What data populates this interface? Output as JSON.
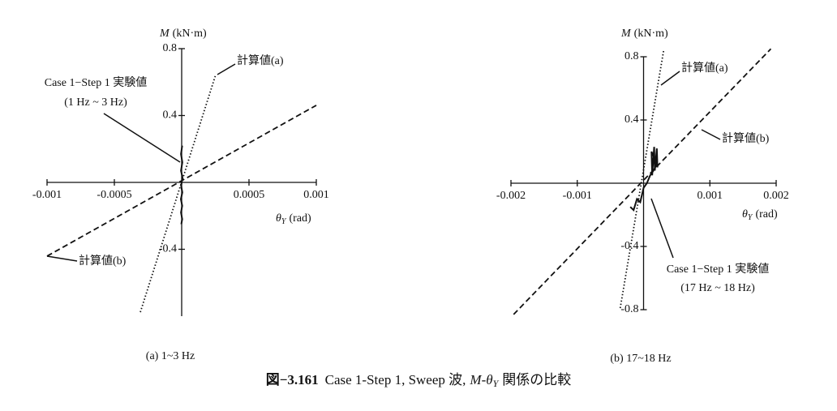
{
  "chart_data": [
    {
      "type": "line",
      "panel_label": "(a) 1~3 Hz",
      "ylabel": {
        "symbol": "M",
        "unit": "(kN·m)"
      },
      "xlabel": {
        "symbol": "θ",
        "sub": "Y",
        "unit": "(rad)"
      },
      "xlim": [
        -0.001,
        0.001
      ],
      "ylim": [
        -0.8,
        0.8
      ],
      "xticks": [
        -0.001,
        -0.0005,
        0.0005,
        0.001
      ],
      "yticks": [
        -0.4,
        0.4,
        0.8
      ],
      "series": [
        {
          "name": "計算値(a)",
          "style": "dotted",
          "color": "#111",
          "x": [
            -0.000307,
            0.000253
          ],
          "values": [
            -0.776,
            0.645
          ]
        },
        {
          "name": "計算値(b)",
          "style": "dashed",
          "color": "#111",
          "x": [
            -0.001,
            0.001
          ],
          "values": [
            -0.441,
            0.461
          ]
        },
        {
          "name": "Case 1−Step 1 実験値",
          "note": "(1 Hz ~ 3 Hz)",
          "style": "solid",
          "color": "#111",
          "x": [
            4e-06,
            -5e-06,
            5e-06,
            -5e-06,
            6e-06,
            -4e-06,
            5e-06,
            -6e-06,
            4e-06,
            -5e-06,
            4e-06,
            -3e-06
          ],
          "values": [
            0.22,
            0.17,
            0.12,
            0.07,
            0.03,
            -0.02,
            -0.06,
            -0.1,
            -0.14,
            -0.18,
            -0.22,
            -0.25
          ]
        }
      ]
    },
    {
      "type": "line",
      "panel_label": "(b) 17~18 Hz",
      "ylabel": {
        "symbol": "M",
        "unit": "(kN·m)"
      },
      "xlabel": {
        "symbol": "θ",
        "sub": "Y",
        "unit": "(rad)"
      },
      "xlim": [
        -0.002,
        0.002
      ],
      "ylim": [
        -0.8,
        0.8
      ],
      "xticks": [
        -0.002,
        -0.001,
        0.001,
        0.002
      ],
      "yticks": [
        -0.8,
        -0.4,
        0.4,
        0.8
      ],
      "series": [
        {
          "name": "計算値(a)",
          "style": "dotted",
          "color": "#111",
          "x": [
            -0.000352,
            0.000303
          ],
          "values": [
            -0.79,
            0.84
          ]
        },
        {
          "name": "計算値(b)",
          "style": "dashed",
          "color": "#111",
          "x": [
            -0.00196,
            0.00192
          ],
          "values": [
            -0.83,
            0.85
          ]
        },
        {
          "name": "Case 1−Step 1 実験値",
          "note": "(17 Hz ~ 18 Hz)",
          "style": "solid",
          "color": "#111",
          "x": [
            -0.0002,
            -0.00015,
            -0.0001,
            -5e-05,
            0,
            5e-05,
            0.0001,
            0.00015,
            0.0002,
            0.00012,
            0.00013,
            0.00016,
            0.00017,
            0.0002,
            0.00021
          ],
          "values": [
            -0.15,
            -0.17,
            -0.1,
            -0.12,
            -0.03,
            0,
            0.05,
            0.08,
            0.12,
            0.2,
            0.05,
            0.23,
            0.08,
            0.22,
            0.1
          ]
        }
      ]
    }
  ],
  "caption": {
    "number": "図−3.161",
    "text": "Case 1-Step 1, Sweep 波,",
    "m": "M",
    "dash": "-",
    "theta": "θ",
    "sub": "Y",
    "rest": "関係の比較"
  }
}
